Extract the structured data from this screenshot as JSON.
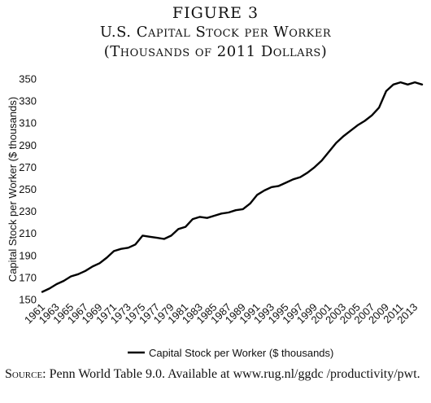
{
  "figure": {
    "label": "FIGURE 3",
    "title": "U.S. Capital Stock per Worker",
    "subtitle": "(Thousands of 2011 Dollars)"
  },
  "source": {
    "label": "Source:",
    "text": " Penn World Table 9.0. Available at www.rug.nl/ggdc /productivity/pwt."
  },
  "colors": {
    "line": "#000000"
  },
  "chart_data": {
    "type": "line",
    "ylabel": "Capital Stock per Worker ($ thousands)",
    "xlabel": "",
    "ylim": [
      150,
      350
    ],
    "yticks": [
      150,
      170,
      190,
      210,
      230,
      250,
      270,
      290,
      310,
      330,
      350
    ],
    "xlim": [
      1961,
      2014
    ],
    "xticks": [
      1961,
      1963,
      1965,
      1967,
      1969,
      1971,
      1973,
      1975,
      1977,
      1979,
      1981,
      1983,
      1985,
      1987,
      1989,
      1991,
      1993,
      1995,
      1997,
      1999,
      2001,
      2003,
      2005,
      2007,
      2009,
      2011,
      2013
    ],
    "grid": false,
    "legend_position": "bottom-center",
    "series": [
      {
        "name": "Capital Stock per Worker ($ thousands)",
        "x": [
          1961,
          1962,
          1963,
          1964,
          1965,
          1966,
          1967,
          1968,
          1969,
          1970,
          1971,
          1972,
          1973,
          1974,
          1975,
          1976,
          1977,
          1978,
          1979,
          1980,
          1981,
          1982,
          1983,
          1984,
          1985,
          1986,
          1987,
          1988,
          1989,
          1990,
          1991,
          1992,
          1993,
          1994,
          1995,
          1996,
          1997,
          1998,
          1999,
          2000,
          2001,
          2002,
          2003,
          2004,
          2005,
          2006,
          2007,
          2008,
          2009,
          2010,
          2011,
          2012,
          2013,
          2014
        ],
        "y": [
          157,
          160,
          164,
          167,
          171,
          173,
          176,
          180,
          183,
          188,
          194,
          196,
          197,
          200,
          208,
          207,
          206,
          205,
          208,
          214,
          216,
          223,
          225,
          224,
          226,
          228,
          229,
          231,
          232,
          237,
          245,
          249,
          252,
          253,
          256,
          259,
          261,
          265,
          270,
          276,
          284,
          292,
          298,
          303,
          308,
          312,
          317,
          324,
          339,
          345,
          347,
          345,
          347,
          345
        ]
      }
    ]
  }
}
